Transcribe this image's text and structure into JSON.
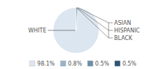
{
  "chart_data": {
    "type": "pie",
    "categories": [
      "WHITE",
      "ASIAN",
      "HISPANIC",
      "BLACK"
    ],
    "values": [
      98.1,
      0.8,
      0.5,
      0.5
    ],
    "value_labels": [
      "98.1%",
      "0.8%",
      "0.5%",
      "0.5%"
    ],
    "colors": [
      "#dce6f0",
      "#9ab3c8",
      "#6b8fa8",
      "#2e5573"
    ],
    "legend": "bottom"
  }
}
